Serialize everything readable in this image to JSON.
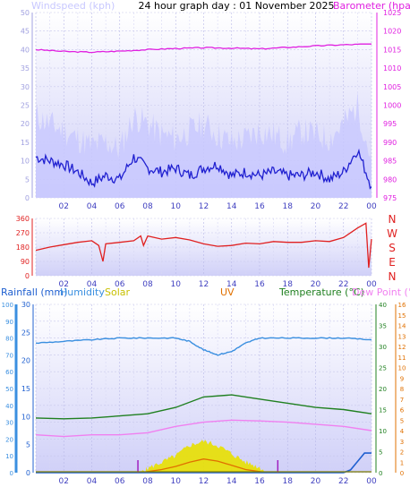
{
  "header": {
    "title": "24 hour graph day : 01 November 2025",
    "left_label": "Windspeed (kph)",
    "right_label": "Barometer (hpa)"
  },
  "direction_letters": [
    "N",
    "W",
    "S",
    "E",
    "N"
  ],
  "bottom_labels": {
    "rainfall": "Rainfall (mm)",
    "humidity": "Humidity",
    "solar": "Solar",
    "uv": "UV",
    "temperature": "Temperature (°C)",
    "dewpoint": "Dew Point (°C)"
  },
  "colors": {
    "wind_gust": "#c8c8ff",
    "wind_avg": "#2020d0",
    "barometer": "#e020e0",
    "direction": "#e02020",
    "rainfall": "#2060d0",
    "humidity": "#3a8fe0",
    "solar": "#e8e000",
    "uv": "#e07000",
    "temperature": "#208020",
    "dewpoint": "#f080f0",
    "plot_bg_top": "#ffffff",
    "plot_bg_bottom": "#d0d0f8"
  },
  "chart_data": [
    {
      "type": "line",
      "x_ticks": [
        "02",
        "04",
        "06",
        "08",
        "10",
        "12",
        "14",
        "16",
        "18",
        "20",
        "22",
        "00"
      ],
      "y_left": {
        "ticks": [
          "0",
          "5",
          "10",
          "15",
          "20",
          "25",
          "30",
          "35",
          "40",
          "45",
          "50"
        ],
        "ylim": [
          0,
          50
        ]
      },
      "y_right": {
        "ticks": [
          "975",
          "980",
          "985",
          "990",
          "995",
          "1000",
          "1005",
          "1010",
          "1015",
          "1020",
          "1025"
        ],
        "ylim": [
          975,
          1025
        ]
      },
      "series": [
        {
          "name": "Windspeed (kph)",
          "axis": "left",
          "x": [
            0,
            1,
            2,
            3,
            4,
            5,
            6,
            7,
            8,
            9,
            10,
            11,
            12,
            13,
            14,
            15,
            16,
            17,
            18,
            19,
            20,
            21,
            22,
            23,
            24
          ],
          "gust": [
            22,
            20,
            18,
            16,
            14,
            15,
            13,
            22,
            20,
            17,
            16,
            18,
            20,
            17,
            15,
            16,
            18,
            17,
            15,
            18,
            17,
            16,
            20,
            25,
            10
          ],
          "values": [
            11,
            10,
            9,
            7,
            4,
            6,
            5,
            11,
            8,
            7,
            8,
            6,
            8,
            9,
            6,
            7,
            6,
            7,
            6,
            6,
            7,
            5,
            7,
            13,
            3
          ]
        },
        {
          "name": "Barometer (hpa)",
          "axis": "right",
          "x": [
            0,
            2,
            4,
            6,
            8,
            10,
            12,
            14,
            16,
            18,
            20,
            22,
            24
          ],
          "values": [
            1015.0,
            1014.5,
            1014.3,
            1014.6,
            1015.0,
            1015.3,
            1015.5,
            1015.4,
            1015.2,
            1015.6,
            1016.0,
            1016.3,
            1016.5
          ]
        }
      ]
    },
    {
      "type": "line",
      "x_ticks": [
        "02",
        "04",
        "06",
        "08",
        "10",
        "12",
        "14",
        "16",
        "18",
        "20",
        "22",
        "00"
      ],
      "y_left": {
        "ticks": [
          "0",
          "90",
          "180",
          "270",
          "360"
        ],
        "ylim": [
          0,
          360
        ]
      },
      "series": [
        {
          "name": "Wind direction",
          "x": [
            0,
            1,
            2,
            3,
            4,
            4.5,
            4.8,
            5,
            6,
            7,
            7.5,
            7.7,
            8,
            9,
            10,
            11,
            12,
            13,
            14,
            15,
            16,
            17,
            18,
            19,
            20,
            21,
            22,
            23,
            23.6,
            23.8,
            24
          ],
          "values": [
            160,
            180,
            195,
            210,
            220,
            190,
            90,
            200,
            210,
            220,
            250,
            190,
            250,
            230,
            240,
            225,
            200,
            185,
            190,
            205,
            200,
            215,
            210,
            210,
            220,
            215,
            240,
            300,
            330,
            50,
            230
          ]
        }
      ]
    },
    {
      "type": "line",
      "x_ticks": [
        "02",
        "04",
        "06",
        "08",
        "10",
        "12",
        "14",
        "16",
        "18",
        "20",
        "22",
        "00"
      ],
      "y_left": [
        {
          "name": "Humidity",
          "ticks": [
            "0",
            "10",
            "20",
            "30",
            "40",
            "50",
            "60",
            "70",
            "80",
            "90",
            "100"
          ],
          "ylim": [
            0,
            100
          ]
        },
        {
          "name": "Rainfall (mm)",
          "ticks": [
            "0",
            "5",
            "10",
            "15",
            "20",
            "25",
            "30"
          ],
          "ylim": [
            0,
            30
          ]
        }
      ],
      "y_right": [
        {
          "name": "Temperature (°C)",
          "ticks": [
            "0",
            "5",
            "10",
            "15",
            "20",
            "25",
            "30",
            "35",
            "40"
          ],
          "ylim": [
            0,
            40
          ]
        },
        {
          "name": "UV",
          "ticks": [
            "0",
            "1",
            "2",
            "3",
            "4",
            "5",
            "6",
            "7",
            "8",
            "9",
            "10",
            "11",
            "12",
            "13",
            "14",
            "15",
            "16"
          ],
          "ylim": [
            0,
            16
          ]
        }
      ],
      "series": [
        {
          "name": "Humidity",
          "axis": "humidity",
          "x": [
            0,
            2,
            4,
            6,
            8,
            10,
            11,
            12,
            13,
            14,
            15,
            16,
            18,
            20,
            22,
            24
          ],
          "values": [
            77,
            78,
            79,
            80,
            80,
            80,
            78,
            73,
            70,
            72,
            77,
            80,
            80,
            80,
            80,
            79
          ]
        },
        {
          "name": "Temperature (°C)",
          "axis": "temperature",
          "x": [
            0,
            2,
            4,
            6,
            8,
            10,
            12,
            14,
            16,
            18,
            20,
            22,
            24
          ],
          "values": [
            13,
            12.8,
            13,
            13.5,
            14,
            15.5,
            18,
            18.5,
            17.5,
            16.5,
            15.5,
            15,
            14
          ]
        },
        {
          "name": "Dew Point (°C)",
          "axis": "temperature",
          "x": [
            0,
            2,
            4,
            6,
            8,
            10,
            12,
            14,
            16,
            18,
            20,
            22,
            24
          ],
          "values": [
            9,
            8.6,
            9,
            9,
            9.5,
            11,
            12,
            12.5,
            12.3,
            12,
            11.5,
            11,
            10
          ]
        },
        {
          "name": "Solar",
          "axis": "uv",
          "x": [
            7.5,
            8,
            9,
            10,
            11,
            12,
            13,
            14,
            15,
            16,
            16.5
          ],
          "values": [
            0,
            0.4,
            1.0,
            1.6,
            2.6,
            3.0,
            2.6,
            1.8,
            1.0,
            0.5,
            0
          ]
        },
        {
          "name": "UV",
          "axis": "uv",
          "x": [
            7.5,
            8,
            9,
            10,
            11,
            12,
            13,
            14,
            15,
            16,
            16.5
          ],
          "values": [
            0,
            0.1,
            0.3,
            0.6,
            1.0,
            1.3,
            1.1,
            0.7,
            0.3,
            0.1,
            0
          ]
        },
        {
          "name": "Rainfall (mm)",
          "axis": "rainfall",
          "x": [
            0,
            22,
            22.5,
            23,
            23.5,
            24
          ],
          "values": [
            0,
            0,
            0.5,
            2.0,
            3.5,
            3.5
          ]
        }
      ],
      "markers_x": [
        7.3,
        17.3
      ]
    }
  ]
}
